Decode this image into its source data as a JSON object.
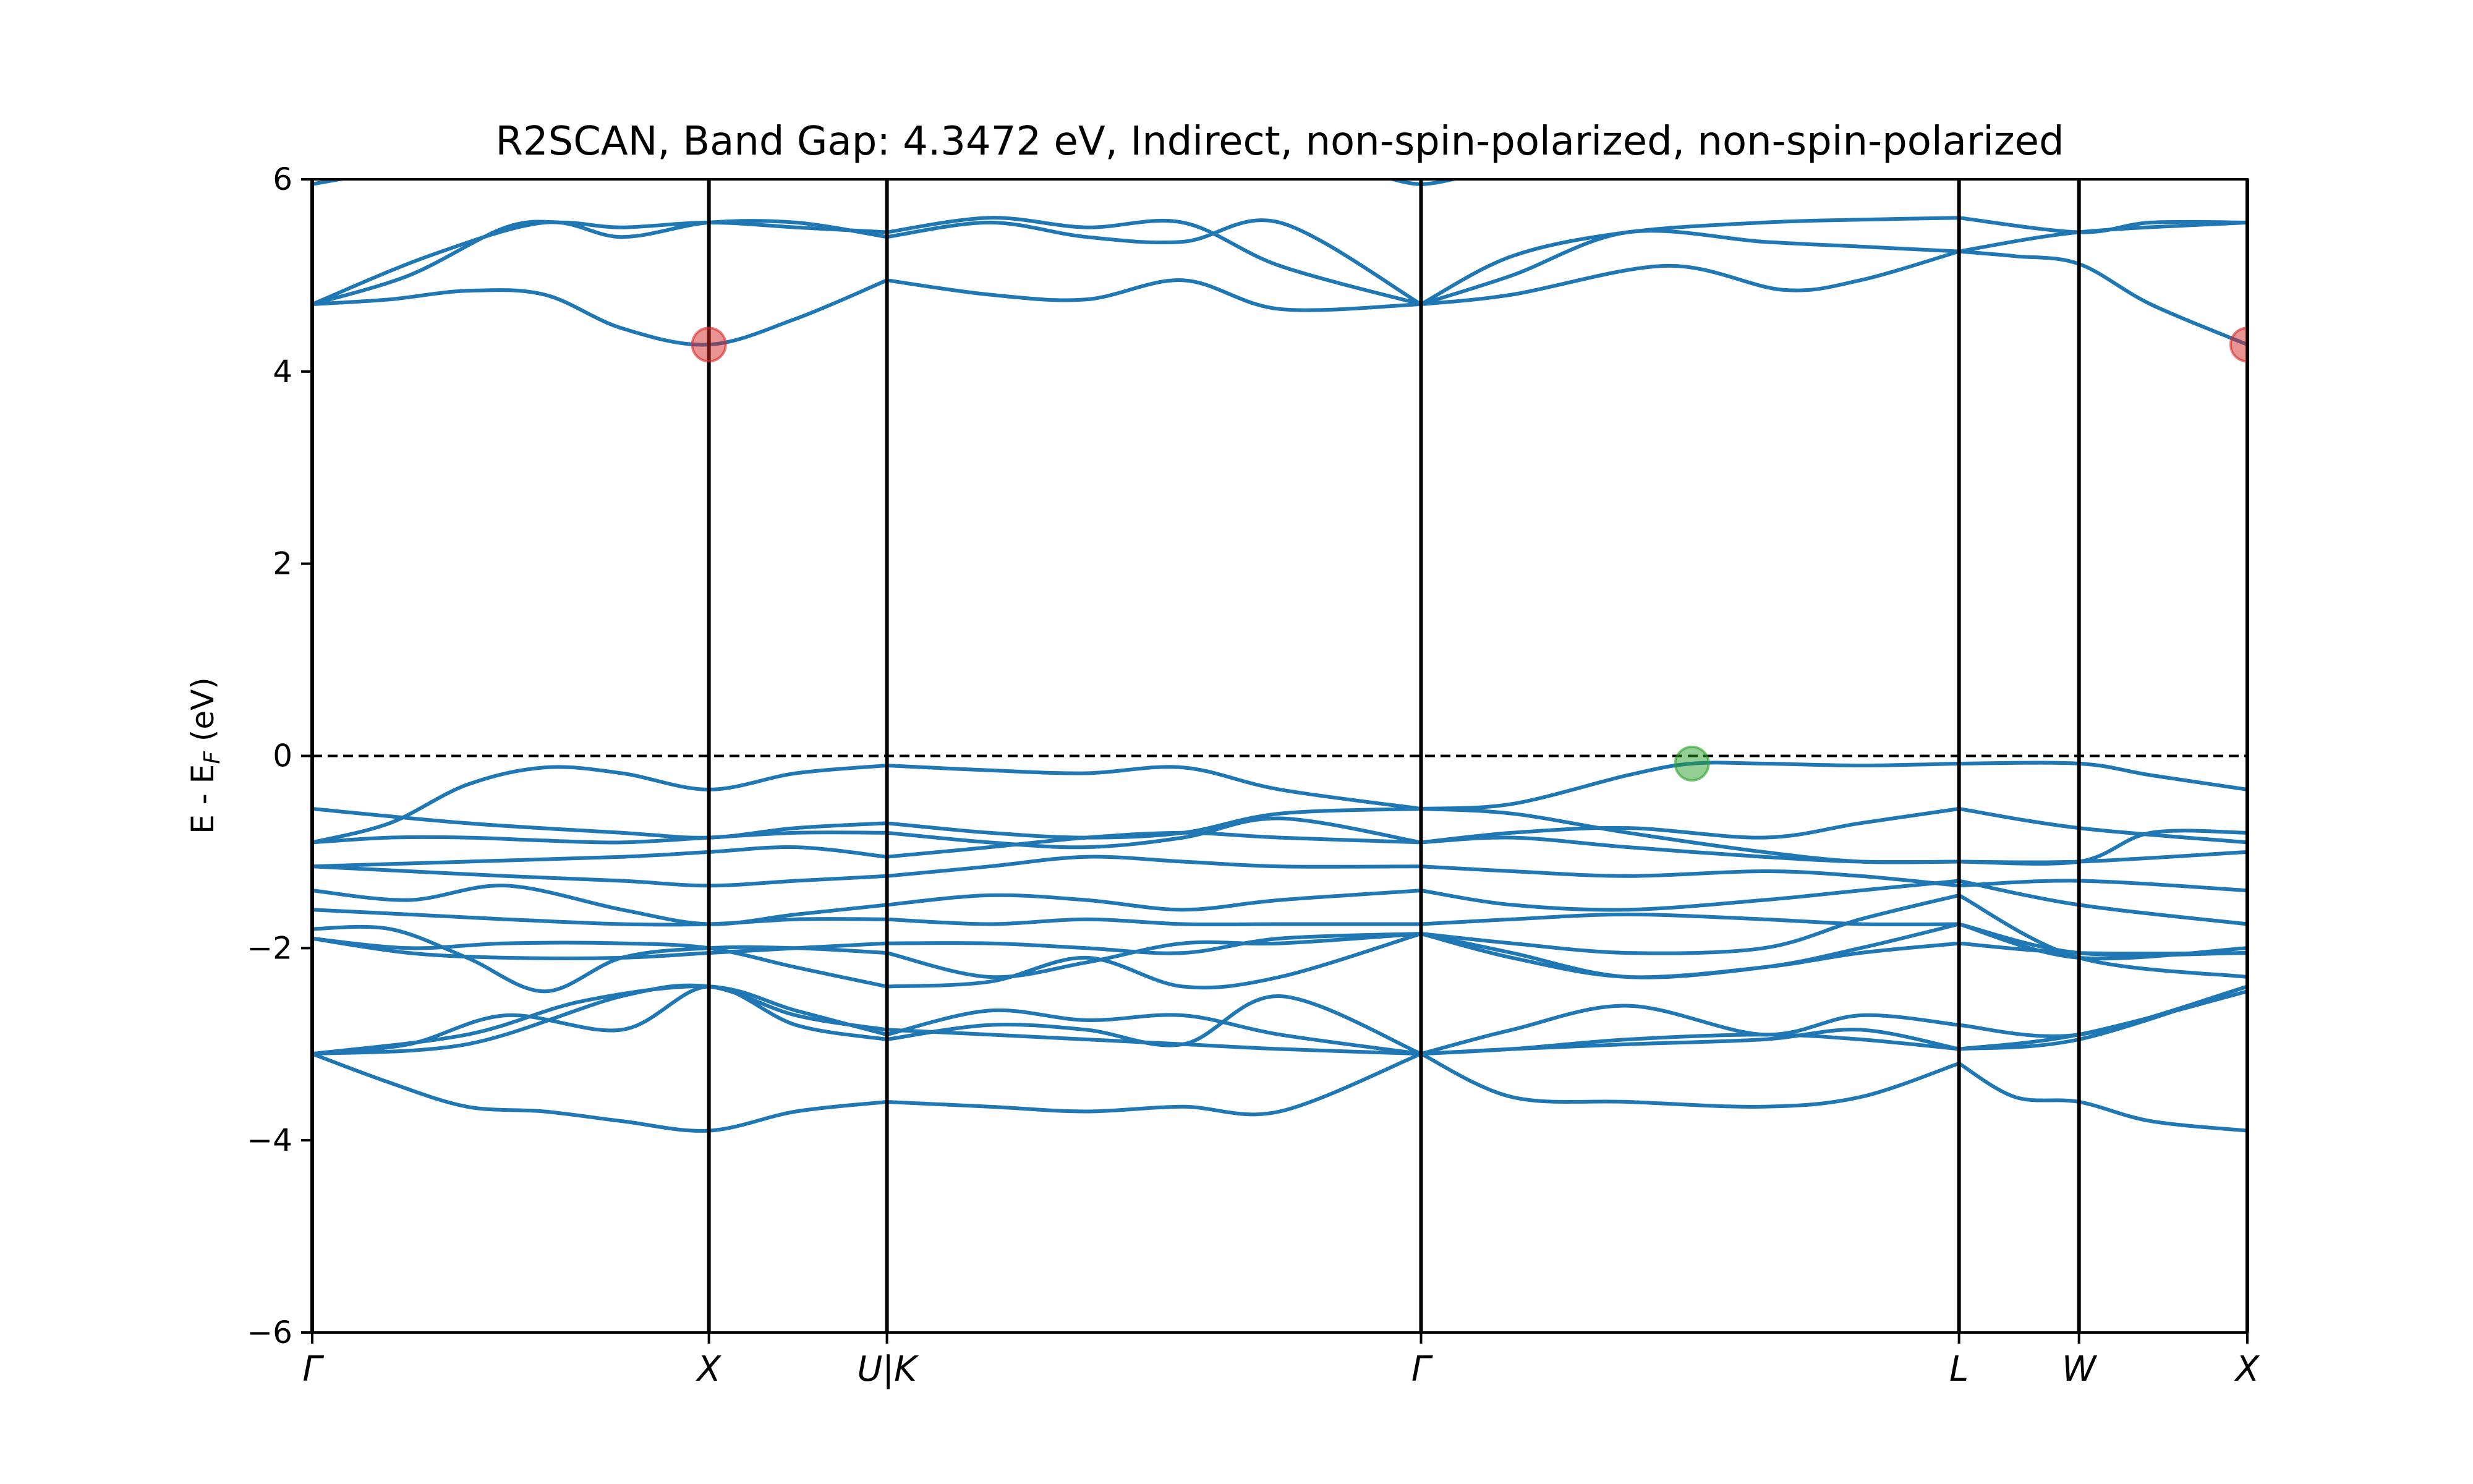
{
  "chart_data": {
    "type": "line",
    "title": "R2SCAN, Band Gap: 4.3472 eV, Indirect, non-spin-polarized, non-spin-polarized",
    "ylabel": "E - E_F (eV)",
    "ylabel_main": "E - E",
    "ylabel_sub": "F",
    "ylabel_tail": " (eV)",
    "xlabel": "",
    "ylim": [
      -6,
      6
    ],
    "yticks": [
      -6,
      -4,
      -2,
      0,
      2,
      4,
      6
    ],
    "ytick_labels": [
      "−6",
      "−4",
      "−2",
      "0",
      "2",
      "4",
      "6"
    ],
    "grid": false,
    "fermi_level": 0,
    "kpoints": [
      {
        "label": "Γ",
        "x": 0.0
      },
      {
        "label": "X",
        "x": 0.205
      },
      {
        "label": "U|K",
        "x": 0.297
      },
      {
        "label": "Γ",
        "x": 0.573
      },
      {
        "label": "L",
        "x": 0.851
      },
      {
        "label": "W",
        "x": 0.913
      },
      {
        "label": "X",
        "x": 1.0
      }
    ],
    "band_color": "#1f77b4",
    "markers": [
      {
        "name": "CBM",
        "x": 0.205,
        "y": 4.28,
        "color": "#d62728"
      },
      {
        "name": "CBM",
        "x": 1.0,
        "y": 4.28,
        "color": "#d62728"
      },
      {
        "name": "VBM",
        "x": 0.713,
        "y": -0.08,
        "color": "#2ca02c"
      }
    ],
    "series": [
      {
        "x": [
          0,
          0.04,
          0.08,
          0.12,
          0.16,
          0.205,
          0.25,
          0.297
        ],
        "y": [
          4.7,
          4.75,
          4.84,
          4.8,
          4.45,
          4.28,
          4.55,
          4.95
        ]
      },
      {
        "x": [
          0.297,
          0.35,
          0.4,
          0.45,
          0.5,
          0.573
        ],
        "y": [
          4.95,
          4.8,
          4.75,
          4.95,
          4.65,
          4.7
        ]
      },
      {
        "x": [
          0.573,
          0.62,
          0.7,
          0.76,
          0.8,
          0.851
        ],
        "y": [
          4.7,
          4.8,
          5.1,
          4.85,
          4.95,
          5.25
        ]
      },
      {
        "x": [
          0.851,
          0.88,
          0.913,
          0.95,
          1.0
        ],
        "y": [
          5.25,
          5.2,
          5.12,
          4.7,
          4.28
        ]
      },
      {
        "x": [
          0,
          0.05,
          0.1,
          0.13,
          0.16,
          0.205,
          0.25,
          0.297
        ],
        "y": [
          4.7,
          5.0,
          5.5,
          5.55,
          5.5,
          5.55,
          5.5,
          5.45
        ]
      },
      {
        "x": [
          0.297,
          0.35,
          0.4,
          0.45,
          0.5,
          0.573
        ],
        "y": [
          5.45,
          5.6,
          5.5,
          5.55,
          5.1,
          4.7
        ]
      },
      {
        "x": [
          0.573,
          0.62,
          0.68,
          0.75,
          0.8,
          0.851
        ],
        "y": [
          4.7,
          5.2,
          5.45,
          5.55,
          5.58,
          5.6
        ]
      },
      {
        "x": [
          0.851,
          0.913,
          0.95,
          1.0
        ],
        "y": [
          5.6,
          5.45,
          5.55,
          5.55
        ]
      },
      {
        "x": [
          0,
          0.06,
          0.12,
          0.16,
          0.205,
          0.25,
          0.297
        ],
        "y": [
          4.7,
          5.2,
          5.55,
          5.4,
          5.55,
          5.55,
          5.4
        ]
      },
      {
        "x": [
          0.297,
          0.35,
          0.4,
          0.45,
          0.5,
          0.573
        ],
        "y": [
          5.4,
          5.55,
          5.4,
          5.35,
          5.55,
          4.7
        ]
      },
      {
        "x": [
          0.573,
          0.62,
          0.68,
          0.75,
          0.8,
          0.851
        ],
        "y": [
          4.7,
          5.0,
          5.45,
          5.35,
          5.3,
          5.25
        ]
      },
      {
        "x": [
          0.851,
          0.913,
          1.0
        ],
        "y": [
          5.25,
          5.45,
          5.55
        ]
      },
      {
        "x": [
          0,
          0.04,
          0.08,
          0.12,
          0.16,
          0.205
        ],
        "y": [
          5.95,
          6.1,
          6.3,
          6.4,
          6.3,
          6.1
        ]
      },
      {
        "x": [
          0.55,
          0.573,
          0.6
        ],
        "y": [
          6.05,
          5.95,
          6.05
        ]
      },
      {
        "x": [
          0,
          0.04,
          0.08,
          0.12,
          0.16,
          0.205,
          0.25,
          0.297
        ],
        "y": [
          -0.9,
          -0.7,
          -0.3,
          -0.12,
          -0.18,
          -0.35,
          -0.18,
          -0.1
        ]
      },
      {
        "x": [
          0.297,
          0.35,
          0.4,
          0.45,
          0.5,
          0.573
        ],
        "y": [
          -0.1,
          -0.15,
          -0.18,
          -0.12,
          -0.35,
          -0.55
        ]
      },
      {
        "x": [
          0.573,
          0.62,
          0.68,
          0.713,
          0.75,
          0.8,
          0.851
        ],
        "y": [
          -0.55,
          -0.5,
          -0.2,
          -0.08,
          -0.08,
          -0.1,
          -0.08
        ]
      },
      {
        "x": [
          0.851,
          0.913,
          0.95,
          1.0
        ],
        "y": [
          -0.08,
          -0.08,
          -0.2,
          -0.35
        ]
      },
      {
        "x": [
          0,
          0.08,
          0.16,
          0.205,
          0.25,
          0.297
        ],
        "y": [
          -0.55,
          -0.7,
          -0.8,
          -0.85,
          -0.75,
          -0.7
        ]
      },
      {
        "x": [
          0.297,
          0.35,
          0.4,
          0.45,
          0.5,
          0.573
        ],
        "y": [
          -0.7,
          -0.8,
          -0.85,
          -0.8,
          -0.6,
          -0.55
        ]
      },
      {
        "x": [
          0.573,
          0.62,
          0.68,
          0.75,
          0.8,
          0.851
        ],
        "y": [
          -0.55,
          -0.6,
          -0.8,
          -1.0,
          -1.1,
          -1.1
        ]
      },
      {
        "x": [
          0.851,
          0.913,
          0.95,
          1.0
        ],
        "y": [
          -1.1,
          -1.1,
          -0.8,
          -0.8
        ]
      },
      {
        "x": [
          0,
          0.04,
          0.08,
          0.12,
          0.16,
          0.205,
          0.25,
          0.297
        ],
        "y": [
          -0.9,
          -0.85,
          -0.85,
          -0.88,
          -0.9,
          -0.85,
          -0.8,
          -0.8
        ]
      },
      {
        "x": [
          0.297,
          0.35,
          0.4,
          0.45,
          0.5,
          0.573
        ],
        "y": [
          -0.8,
          -0.9,
          -0.95,
          -0.85,
          -0.65,
          -0.9
        ]
      },
      {
        "x": [
          0.573,
          0.62,
          0.68,
          0.75,
          0.8,
          0.851
        ],
        "y": [
          -0.9,
          -0.8,
          -0.75,
          -0.85,
          -0.7,
          -0.55
        ]
      },
      {
        "x": [
          0.851,
          0.913,
          1.0
        ],
        "y": [
          -0.55,
          -0.75,
          -0.9
        ]
      },
      {
        "x": [
          0,
          0.08,
          0.16,
          0.205,
          0.25,
          0.297
        ],
        "y": [
          -1.15,
          -1.1,
          -1.05,
          -1.0,
          -0.95,
          -1.05
        ]
      },
      {
        "x": [
          0.297,
          0.35,
          0.4,
          0.45,
          0.5,
          0.573
        ],
        "y": [
          -1.05,
          -0.95,
          -0.85,
          -0.8,
          -0.85,
          -0.9
        ]
      },
      {
        "x": [
          0.573,
          0.62,
          0.68,
          0.75,
          0.8,
          0.851
        ],
        "y": [
          -0.9,
          -0.85,
          -0.95,
          -1.05,
          -1.1,
          -1.1
        ]
      },
      {
        "x": [
          0.851,
          0.913,
          1.0
        ],
        "y": [
          -1.1,
          -1.1,
          -1.0
        ]
      },
      {
        "x": [
          0,
          0.05,
          0.1,
          0.16,
          0.205,
          0.25,
          0.297
        ],
        "y": [
          -1.15,
          -1.2,
          -1.25,
          -1.3,
          -1.35,
          -1.3,
          -1.25
        ]
      },
      {
        "x": [
          0.297,
          0.35,
          0.4,
          0.45,
          0.5,
          0.573
        ],
        "y": [
          -1.25,
          -1.15,
          -1.05,
          -1.1,
          -1.15,
          -1.15
        ]
      },
      {
        "x": [
          0.573,
          0.62,
          0.68,
          0.75,
          0.8,
          0.851
        ],
        "y": [
          -1.15,
          -1.2,
          -1.25,
          -1.2,
          -1.25,
          -1.35
        ]
      },
      {
        "x": [
          0.851,
          0.913,
          1.0
        ],
        "y": [
          -1.35,
          -1.3,
          -1.4
        ]
      },
      {
        "x": [
          0,
          0.05,
          0.1,
          0.16,
          0.205,
          0.25,
          0.297
        ],
        "y": [
          -1.4,
          -1.5,
          -1.35,
          -1.6,
          -1.75,
          -1.65,
          -1.55
        ]
      },
      {
        "x": [
          0.297,
          0.35,
          0.4,
          0.45,
          0.5,
          0.573
        ],
        "y": [
          -1.55,
          -1.45,
          -1.5,
          -1.6,
          -1.5,
          -1.4
        ]
      },
      {
        "x": [
          0.573,
          0.62,
          0.68,
          0.75,
          0.8,
          0.851
        ],
        "y": [
          -1.4,
          -1.55,
          -1.6,
          -1.5,
          -1.4,
          -1.3
        ]
      },
      {
        "x": [
          0.851,
          0.913,
          1.0
        ],
        "y": [
          -1.3,
          -1.55,
          -1.75
        ]
      },
      {
        "x": [
          0,
          0.05,
          0.1,
          0.16,
          0.205,
          0.25,
          0.297
        ],
        "y": [
          -1.6,
          -1.65,
          -1.7,
          -1.75,
          -1.75,
          -1.7,
          -1.7
        ]
      },
      {
        "x": [
          0.297,
          0.35,
          0.4,
          0.45,
          0.5,
          0.573
        ],
        "y": [
          -1.7,
          -1.75,
          -1.7,
          -1.75,
          -1.75,
          -1.75
        ]
      },
      {
        "x": [
          0.573,
          0.62,
          0.68,
          0.75,
          0.8,
          0.851
        ],
        "y": [
          -1.75,
          -1.7,
          -1.65,
          -1.7,
          -1.75,
          -1.75
        ]
      },
      {
        "x": [
          0.851,
          0.913,
          1.0
        ],
        "y": [
          -1.75,
          -2.05,
          -2.05
        ]
      },
      {
        "x": [
          0,
          0.04,
          0.08,
          0.12,
          0.16,
          0.205,
          0.25,
          0.297
        ],
        "y": [
          -1.8,
          -1.8,
          -2.1,
          -2.45,
          -2.1,
          -2.0,
          -2.0,
          -2.05
        ]
      },
      {
        "x": [
          0.297,
          0.35,
          0.4,
          0.45,
          0.5,
          0.573
        ],
        "y": [
          -2.05,
          -2.3,
          -2.15,
          -1.95,
          -1.95,
          -1.85
        ]
      },
      {
        "x": [
          0.573,
          0.62,
          0.68,
          0.75,
          0.8,
          0.851
        ],
        "y": [
          -1.85,
          -1.95,
          -2.05,
          -2.0,
          -1.7,
          -1.45
        ]
      },
      {
        "x": [
          0.851,
          0.913,
          1.0
        ],
        "y": [
          -1.45,
          -2.1,
          -2.3
        ]
      },
      {
        "x": [
          0,
          0.05,
          0.1,
          0.16,
          0.205,
          0.25,
          0.297
        ],
        "y": [
          -1.9,
          -2.05,
          -2.1,
          -2.1,
          -2.05,
          -2.0,
          -1.95
        ]
      },
      {
        "x": [
          0.297,
          0.35,
          0.4,
          0.45,
          0.5,
          0.573
        ],
        "y": [
          -1.95,
          -1.95,
          -2.0,
          -2.05,
          -1.9,
          -1.85
        ]
      },
      {
        "x": [
          0.573,
          0.62,
          0.68,
          0.75,
          0.8,
          0.851
        ],
        "y": [
          -1.85,
          -2.05,
          -2.3,
          -2.2,
          -2.0,
          -1.75
        ]
      },
      {
        "x": [
          0.851,
          0.913,
          1.0
        ],
        "y": [
          -1.75,
          -2.1,
          -2.0
        ]
      },
      {
        "x": [
          0,
          0.05,
          0.1,
          0.16,
          0.205,
          0.25,
          0.297
        ],
        "y": [
          -1.9,
          -2.0,
          -1.95,
          -1.95,
          -2.0,
          -2.2,
          -2.4
        ]
      },
      {
        "x": [
          0.297,
          0.35,
          0.4,
          0.45,
          0.5,
          0.573
        ],
        "y": [
          -2.4,
          -2.35,
          -2.1,
          -2.4,
          -2.3,
          -1.85
        ]
      },
      {
        "x": [
          0.573,
          0.62,
          0.68,
          0.75,
          0.8,
          0.851
        ],
        "y": [
          -1.85,
          -2.1,
          -2.3,
          -2.2,
          -2.05,
          -1.95
        ]
      },
      {
        "x": [
          0.851,
          0.913,
          1.0
        ],
        "y": [
          -1.95,
          -2.05,
          -2.05
        ]
      },
      {
        "x": [
          0,
          0.08,
          0.14,
          0.205,
          0.25,
          0.297
        ],
        "y": [
          -3.1,
          -2.9,
          -2.55,
          -2.4,
          -2.65,
          -2.9
        ]
      },
      {
        "x": [
          0.297,
          0.35,
          0.4,
          0.45,
          0.5,
          0.573
        ],
        "y": [
          -2.9,
          -2.65,
          -2.75,
          -2.7,
          -2.9,
          -3.1
        ]
      },
      {
        "x": [
          0.573,
          0.62,
          0.68,
          0.75,
          0.8,
          0.851
        ],
        "y": [
          -3.1,
          -2.85,
          -2.6,
          -2.9,
          -2.7,
          -2.8
        ]
      },
      {
        "x": [
          0.851,
          0.913,
          1.0
        ],
        "y": [
          -2.8,
          -2.9,
          -2.4
        ]
      },
      {
        "x": [
          0,
          0.05,
          0.1,
          0.16,
          0.205,
          0.25,
          0.297
        ],
        "y": [
          -3.1,
          -3.0,
          -2.7,
          -2.85,
          -2.4,
          -2.8,
          -2.95
        ]
      },
      {
        "x": [
          0.297,
          0.35,
          0.4,
          0.45,
          0.5,
          0.573
        ],
        "y": [
          -2.95,
          -2.8,
          -2.85,
          -3.0,
          -2.5,
          -3.1
        ]
      },
      {
        "x": [
          0.573,
          0.62,
          0.68,
          0.75,
          0.8,
          0.851
        ],
        "y": [
          -3.1,
          -3.05,
          -2.95,
          -2.9,
          -2.95,
          -3.05
        ]
      },
      {
        "x": [
          0.851,
          0.913,
          1.0
        ],
        "y": [
          -3.05,
          -2.95,
          -2.4
        ]
      },
      {
        "x": [
          0,
          0.08,
          0.16,
          0.205,
          0.25,
          0.297
        ],
        "y": [
          -3.1,
          -3.0,
          -2.5,
          -2.4,
          -2.7,
          -2.85
        ]
      },
      {
        "x": [
          0.297,
          0.35,
          0.4,
          0.45,
          0.5,
          0.573
        ],
        "y": [
          -2.85,
          -2.9,
          -2.95,
          -3.0,
          -3.05,
          -3.1
        ]
      },
      {
        "x": [
          0.573,
          0.62,
          0.68,
          0.75,
          0.8,
          0.851
        ],
        "y": [
          -3.1,
          -3.05,
          -3.0,
          -2.95,
          -2.85,
          -3.05
        ]
      },
      {
        "x": [
          0.851,
          0.913,
          1.0
        ],
        "y": [
          -3.05,
          -2.9,
          -2.45
        ]
      },
      {
        "x": [
          0,
          0.04,
          0.08,
          0.12,
          0.16,
          0.205,
          0.25,
          0.297
        ],
        "y": [
          -3.1,
          -3.4,
          -3.65,
          -3.7,
          -3.8,
          -3.9,
          -3.7,
          -3.6
        ]
      },
      {
        "x": [
          0.297,
          0.35,
          0.4,
          0.45,
          0.5,
          0.573
        ],
        "y": [
          -3.6,
          -3.65,
          -3.7,
          -3.65,
          -3.7,
          -3.1
        ]
      },
      {
        "x": [
          0.573,
          0.62,
          0.68,
          0.75,
          0.8,
          0.851
        ],
        "y": [
          -3.1,
          -3.55,
          -3.6,
          -3.65,
          -3.55,
          -3.2
        ]
      },
      {
        "x": [
          0.851,
          0.88,
          0.913,
          0.95,
          1.0
        ],
        "y": [
          -3.2,
          -3.55,
          -3.6,
          -3.8,
          -3.9
        ]
      }
    ]
  }
}
